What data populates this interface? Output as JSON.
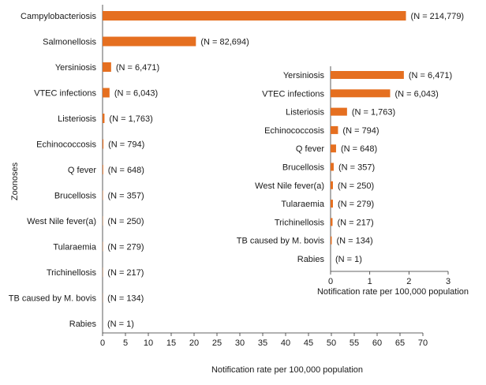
{
  "colors": {
    "bar": "#e56f20",
    "axis": "#333333"
  },
  "chart_data": [
    {
      "type": "bar",
      "orientation": "horizontal",
      "title": "",
      "xlabel": "Notification rate per 100,000 population",
      "ylabel": "Zoonoses",
      "xlim": [
        0,
        70
      ],
      "xticks": [
        0,
        5,
        10,
        15,
        20,
        25,
        30,
        35,
        40,
        45,
        50,
        55,
        60,
        65,
        70
      ],
      "grid": false,
      "categories": [
        "Campylobacteriosis",
        "Salmonellosis",
        "Yersiniosis",
        "VTEC infections",
        "Listeriosis",
        "Echinococcosis",
        "Q fever",
        "Brucellosis",
        "West Nile fever(a)",
        "Tularaemia",
        "Trichinellosis",
        "TB caused by M. bovis",
        "Rabies"
      ],
      "values": [
        66.3,
        20.4,
        1.87,
        1.52,
        0.42,
        0.19,
        0.14,
        0.08,
        0.06,
        0.06,
        0.05,
        0.03,
        0.0
      ],
      "data_labels": [
        "(N = 214,779)",
        "(N = 82,694)",
        "(N = 6,471)",
        "(N = 6,043)",
        "(N = 1,763)",
        "(N = 794)",
        "(N = 648)",
        "(N = 357)",
        "(N = 250)",
        "(N = 279)",
        "(N = 217)",
        "(N = 134)",
        "(N = 1)"
      ]
    },
    {
      "type": "bar",
      "orientation": "horizontal",
      "title": "",
      "xlabel": "Notification rate per 100,000 population",
      "ylabel": "",
      "xlim": [
        0,
        3
      ],
      "xticks": [
        0,
        1,
        2,
        3
      ],
      "grid": false,
      "categories": [
        "Yersiniosis",
        "VTEC infections",
        "Listeriosis",
        "Echinococcosis",
        "Q fever",
        "Brucellosis",
        "West Nile fever(a)",
        "Tularaemia",
        "Trichinellosis",
        "TB caused by M. bovis",
        "Rabies"
      ],
      "values": [
        1.87,
        1.52,
        0.42,
        0.19,
        0.14,
        0.08,
        0.06,
        0.06,
        0.05,
        0.03,
        0.0
      ],
      "data_labels": [
        "(N = 6,471)",
        "(N = 6,043)",
        "(N = 1,763)",
        "(N = 794)",
        "(N = 648)",
        "(N = 357)",
        "(N = 250)",
        "(N = 279)",
        "(N = 217)",
        "(N = 134)",
        "(N = 1)"
      ]
    }
  ]
}
